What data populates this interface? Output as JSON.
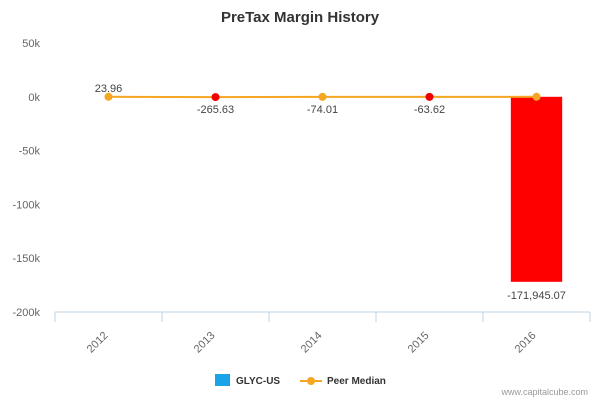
{
  "chart_data": {
    "type": "bar",
    "title": "PreTax Margin History",
    "categories": [
      "2012",
      "2013",
      "2014",
      "2015",
      "2016"
    ],
    "ylim": [
      -200000,
      50000
    ],
    "y_ticks": [
      50000,
      0,
      -50000,
      -100000,
      -150000,
      -200000
    ],
    "y_tick_labels": [
      "50k",
      "0k",
      "-50k",
      "-100k",
      "-150k",
      "-200k"
    ],
    "series": [
      {
        "name": "GLYC-US",
        "kind": "bar",
        "color": "#1aa3e8",
        "values": [
          null,
          null,
          null,
          null,
          -171945.07
        ],
        "bar_colors": [
          "#ff0000",
          "#ff0000",
          "#ff0000",
          "#ff0000",
          "#ff0000"
        ]
      },
      {
        "name": "Peer Median",
        "kind": "line",
        "color": "#f5a623",
        "values": [
          23.96,
          -265.63,
          -74.01,
          -63.62,
          0
        ],
        "marker_colors": [
          "#f5a623",
          "#ee0000",
          "#f5a623",
          "#ee0000",
          "#f5a623"
        ]
      }
    ],
    "data_labels": [
      {
        "category": "2012",
        "text": "23.96",
        "position": "above"
      },
      {
        "category": "2013",
        "text": "-265.63",
        "position": "below"
      },
      {
        "category": "2014",
        "text": "-74.01",
        "position": "below"
      },
      {
        "category": "2015",
        "text": "-63.62",
        "position": "below"
      },
      {
        "category": "2016",
        "text": "-171,945.07",
        "position": "below-bar"
      }
    ],
    "legend": [
      "GLYC-US",
      "Peer Median"
    ],
    "legend_position": "bottom-center",
    "grid": false
  },
  "credit": "www.capitalcube.com"
}
